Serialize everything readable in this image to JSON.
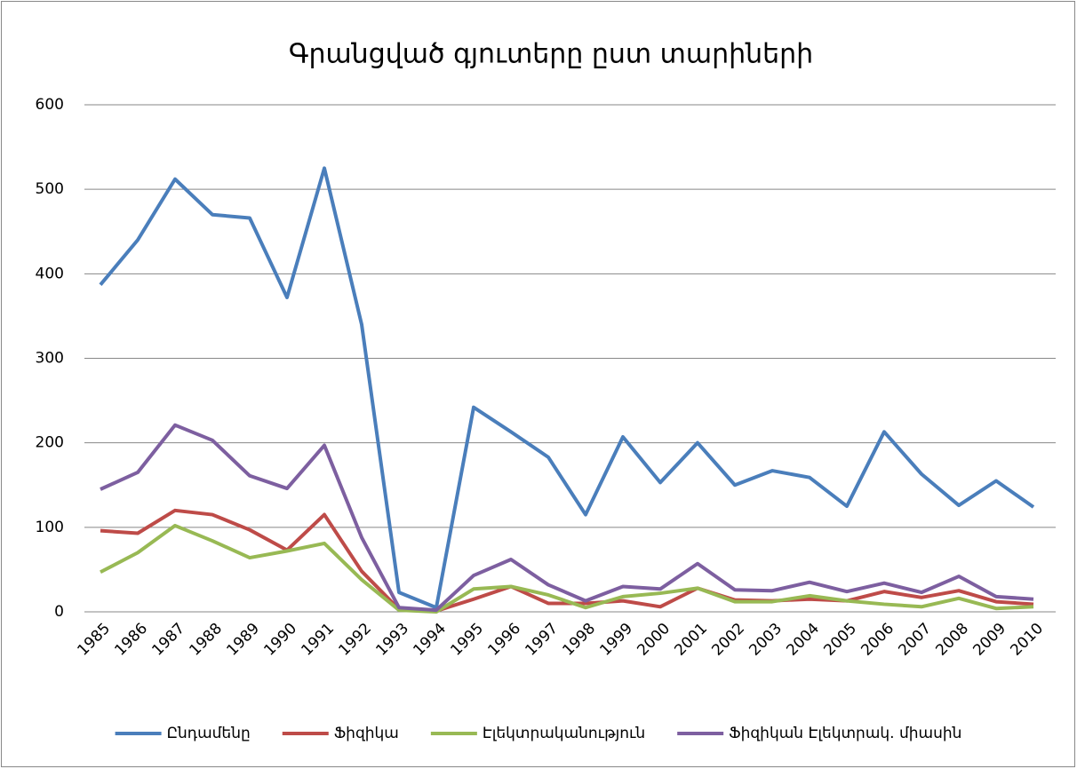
{
  "chart_data": {
    "type": "line",
    "title": "Գրանցված գյուտերը ըստ տարիների",
    "categories": [
      "1985",
      "1986",
      "1987",
      "1988",
      "1989",
      "1990",
      "1991",
      "1992",
      "1993",
      "1994",
      "1995",
      "1996",
      "1997",
      "1998",
      "1999",
      "2000",
      "2001",
      "2002",
      "2003",
      "2004",
      "2005",
      "2006",
      "2007",
      "2008",
      "2009",
      "2010"
    ],
    "series": [
      {
        "name": "Ընդամենը",
        "color": "#4a7ebb",
        "values": [
          387,
          440,
          512,
          470,
          466,
          372,
          525,
          340,
          23,
          5,
          242,
          213,
          183,
          115,
          207,
          153,
          200,
          150,
          167,
          159,
          125,
          213,
          163,
          126,
          155,
          124
        ]
      },
      {
        "name": "Ֆիզիկա",
        "color": "#be4b48",
        "values": [
          96,
          93,
          120,
          115,
          97,
          73,
          115,
          48,
          3,
          1,
          15,
          30,
          10,
          10,
          13,
          6,
          28,
          14,
          13,
          15,
          13,
          24,
          17,
          25,
          12,
          9
        ]
      },
      {
        "name": "Էլեկտրականություն",
        "color": "#98b954",
        "values": [
          47,
          70,
          102,
          84,
          64,
          72,
          81,
          38,
          2,
          0,
          27,
          30,
          20,
          5,
          18,
          22,
          28,
          12,
          12,
          19,
          13,
          9,
          6,
          16,
          4,
          6
        ]
      },
      {
        "name": "Ֆիզիկան Էլեկտրակ. միասին",
        "color": "#7d5fa0",
        "values": [
          145,
          165,
          221,
          203,
          161,
          146,
          197,
          88,
          5,
          2,
          43,
          62,
          32,
          13,
          30,
          27,
          57,
          26,
          25,
          35,
          24,
          34,
          23,
          42,
          18,
          15
        ]
      }
    ],
    "ylim": [
      0,
      600
    ],
    "yticks": [
      0,
      100,
      200,
      300,
      400,
      500,
      600
    ],
    "grid": true,
    "legend": "bottom"
  }
}
